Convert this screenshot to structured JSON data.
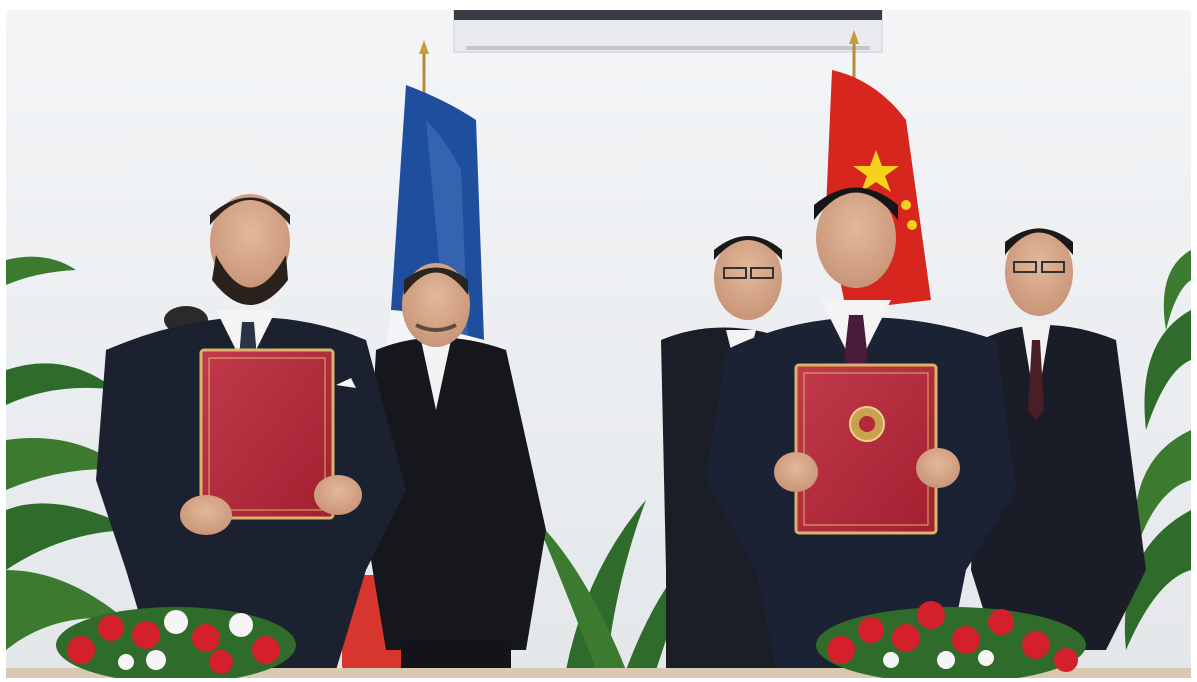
{
  "scene": {
    "description_tags": [
      "signing-ceremony",
      "flags",
      "folders",
      "flowers"
    ],
    "colors": {
      "wall": "#eef0f2",
      "suit_dark": "#1c2130",
      "folder_red": "#b3283a",
      "folder_gold": "#d9b46a",
      "flag_blue": "#1f4e9c",
      "flag_white": "#f4f5f7",
      "flag_red": "#d7261e",
      "flag_yellow": "#f7d21a",
      "rose_red": "#d4202a",
      "leaf_green": "#2f6b2a",
      "chair_red": "#d6362e"
    }
  }
}
